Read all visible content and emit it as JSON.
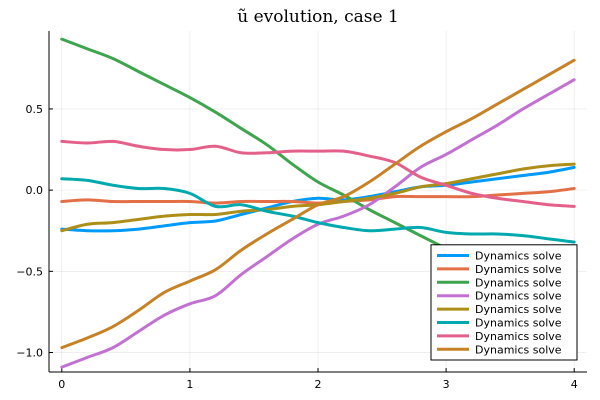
{
  "chart_data": {
    "type": "line",
    "title": "ũ evolution, case 1",
    "xlabel": "",
    "ylabel": "",
    "xlim": [
      -0.1,
      4.1
    ],
    "ylim": [
      -1.12,
      0.98
    ],
    "xticks": [
      0,
      1,
      2,
      3,
      4
    ],
    "xtick_labels": [
      "0",
      "1",
      "2",
      "3",
      "4"
    ],
    "yticks": [
      -1.0,
      -0.5,
      0.0,
      0.5
    ],
    "ytick_labels": [
      "−1.0",
      "−0.5",
      "0.0",
      "0.5"
    ],
    "grid": true,
    "legend_position": "bottom-right",
    "series": [
      {
        "name": "Dynamics solve",
        "color": "#009AFA",
        "x": [
          0,
          0.2,
          0.4,
          0.6,
          0.8,
          1.0,
          1.2,
          1.4,
          1.6,
          1.8,
          2.0,
          2.2,
          2.4,
          2.6,
          2.8,
          3.0,
          3.2,
          3.4,
          3.6,
          3.8,
          4.0
        ],
        "y": [
          -0.24,
          -0.25,
          -0.25,
          -0.24,
          -0.22,
          -0.2,
          -0.19,
          -0.15,
          -0.11,
          -0.07,
          -0.05,
          -0.06,
          -0.04,
          -0.01,
          0.02,
          0.03,
          0.05,
          0.07,
          0.09,
          0.11,
          0.14
        ]
      },
      {
        "name": "Dynamics solve",
        "color": "#E36F47",
        "x": [
          0,
          0.2,
          0.4,
          0.6,
          0.8,
          1.0,
          1.2,
          1.4,
          1.6,
          1.8,
          2.0,
          2.2,
          2.4,
          2.6,
          2.8,
          3.0,
          3.2,
          3.4,
          3.6,
          3.8,
          4.0
        ],
        "y": [
          -0.07,
          -0.06,
          -0.07,
          -0.07,
          -0.07,
          -0.07,
          -0.08,
          -0.07,
          -0.07,
          -0.07,
          -0.08,
          -0.07,
          -0.06,
          -0.04,
          -0.04,
          -0.04,
          -0.04,
          -0.03,
          -0.02,
          -0.01,
          0.01
        ]
      },
      {
        "name": "Dynamics solve",
        "color": "#3EA44E",
        "x": [
          0,
          0.2,
          0.4,
          0.6,
          0.8,
          1.0,
          1.2,
          1.4,
          1.6,
          1.8,
          2.0,
          2.2,
          2.4,
          2.6,
          2.8,
          3.0,
          3.2,
          3.4,
          3.6,
          3.8,
          4.0
        ],
        "y": [
          0.93,
          0.87,
          0.81,
          0.73,
          0.65,
          0.57,
          0.48,
          0.38,
          0.28,
          0.16,
          0.05,
          -0.03,
          -0.12,
          -0.2,
          -0.28,
          -0.36,
          -0.44,
          -0.52,
          -0.6,
          -0.68,
          -0.76
        ]
      },
      {
        "name": "Dynamics solve",
        "color": "#C271D2",
        "x": [
          0,
          0.2,
          0.4,
          0.6,
          0.8,
          1.0,
          1.2,
          1.4,
          1.6,
          1.8,
          2.0,
          2.2,
          2.4,
          2.6,
          2.8,
          3.0,
          3.2,
          3.4,
          3.6,
          3.8,
          4.0
        ],
        "y": [
          -1.09,
          -1.03,
          -0.97,
          -0.87,
          -0.77,
          -0.7,
          -0.65,
          -0.52,
          -0.41,
          -0.3,
          -0.21,
          -0.16,
          -0.09,
          0.02,
          0.14,
          0.22,
          0.31,
          0.4,
          0.5,
          0.59,
          0.68
        ]
      },
      {
        "name": "Dynamics solve",
        "color": "#AC8E18",
        "x": [
          0,
          0.2,
          0.4,
          0.6,
          0.8,
          1.0,
          1.2,
          1.4,
          1.6,
          1.8,
          2.0,
          2.2,
          2.4,
          2.6,
          2.8,
          3.0,
          3.2,
          3.4,
          3.6,
          3.8,
          4.0
        ],
        "y": [
          -0.25,
          -0.21,
          -0.2,
          -0.18,
          -0.16,
          -0.15,
          -0.15,
          -0.13,
          -0.12,
          -0.1,
          -0.09,
          -0.07,
          -0.05,
          -0.02,
          0.02,
          0.04,
          0.07,
          0.1,
          0.13,
          0.15,
          0.16
        ]
      },
      {
        "name": "Dynamics solve",
        "color": "#00A9AD",
        "x": [
          0,
          0.2,
          0.4,
          0.6,
          0.8,
          1.0,
          1.2,
          1.4,
          1.6,
          1.8,
          2.0,
          2.2,
          2.4,
          2.6,
          2.8,
          3.0,
          3.2,
          3.4,
          3.6,
          3.8,
          4.0
        ],
        "y": [
          0.07,
          0.06,
          0.03,
          0.01,
          0.01,
          -0.02,
          -0.1,
          -0.09,
          -0.13,
          -0.16,
          -0.2,
          -0.23,
          -0.25,
          -0.24,
          -0.23,
          -0.26,
          -0.27,
          -0.27,
          -0.28,
          -0.3,
          -0.32
        ]
      },
      {
        "name": "Dynamics solve",
        "color": "#E4608A",
        "x": [
          0,
          0.2,
          0.4,
          0.6,
          0.8,
          1.0,
          1.2,
          1.4,
          1.6,
          1.8,
          2.0,
          2.2,
          2.4,
          2.6,
          2.8,
          3.0,
          3.2,
          3.4,
          3.6,
          3.8,
          4.0
        ],
        "y": [
          0.3,
          0.29,
          0.3,
          0.27,
          0.25,
          0.25,
          0.27,
          0.23,
          0.23,
          0.24,
          0.24,
          0.24,
          0.21,
          0.17,
          0.08,
          0.03,
          -0.02,
          -0.05,
          -0.07,
          -0.09,
          -0.1
        ]
      },
      {
        "name": "Dynamics solve",
        "color": "#C68225",
        "x": [
          0,
          0.2,
          0.4,
          0.6,
          0.8,
          1.0,
          1.2,
          1.4,
          1.6,
          1.8,
          2.0,
          2.2,
          2.4,
          2.6,
          2.8,
          3.0,
          3.2,
          3.4,
          3.6,
          3.8,
          4.0
        ],
        "y": [
          -0.97,
          -0.91,
          -0.84,
          -0.74,
          -0.63,
          -0.56,
          -0.49,
          -0.37,
          -0.27,
          -0.18,
          -0.09,
          -0.04,
          0.05,
          0.16,
          0.27,
          0.36,
          0.44,
          0.53,
          0.62,
          0.71,
          0.8
        ]
      }
    ]
  }
}
